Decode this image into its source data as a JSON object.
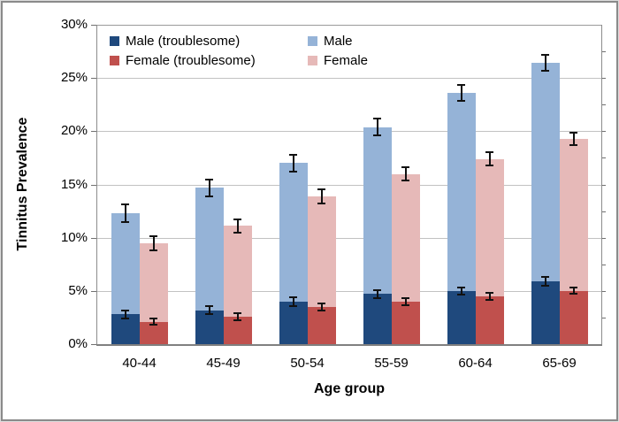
{
  "figure": {
    "background": "#FFFFFF",
    "border_color": "#8A8A8A"
  },
  "legend": {
    "position": "top-left-inside",
    "columns": [
      {
        "items": [
          {
            "label": "Male (troublesome)",
            "color": "#1F497D"
          },
          {
            "label": "Female (troublesome)",
            "color": "#C0504D"
          }
        ]
      },
      {
        "items": [
          {
            "label": "Male",
            "color": "#95B3D7"
          },
          {
            "label": "Female",
            "color": "#E6B9B8"
          }
        ]
      }
    ]
  },
  "chart_data": {
    "type": "bar",
    "title": "",
    "xlabel": "Age group",
    "ylabel": "Tinnitus Prevalence",
    "categories": [
      "40-44",
      "45-49",
      "50-54",
      "55-59",
      "60-64",
      "65-69"
    ],
    "series": [
      {
        "name": "Male",
        "color": "#95B3D7",
        "values": [
          12.3,
          14.7,
          17.0,
          20.4,
          23.6,
          26.4
        ],
        "errors": [
          0.8,
          0.8,
          0.8,
          0.8,
          0.75,
          0.75
        ]
      },
      {
        "name": "Female",
        "color": "#E6B9B8",
        "values": [
          9.5,
          11.1,
          13.9,
          16.0,
          17.4,
          19.3
        ],
        "errors": [
          0.65,
          0.65,
          0.65,
          0.65,
          0.6,
          0.6
        ]
      },
      {
        "name": "Male (troublesome)",
        "color": "#1F497D",
        "values": [
          2.8,
          3.2,
          4.0,
          4.7,
          5.0,
          5.9
        ],
        "errors": [
          0.4,
          0.4,
          0.4,
          0.4,
          0.35,
          0.4
        ]
      },
      {
        "name": "Female (troublesome)",
        "color": "#C0504D",
        "values": [
          2.1,
          2.6,
          3.5,
          4.0,
          4.5,
          5.0
        ],
        "errors": [
          0.3,
          0.35,
          0.35,
          0.35,
          0.3,
          0.3
        ]
      }
    ],
    "ylim": [
      0,
      30
    ],
    "ytick_step": 5,
    "ytick_labels": [
      "0%",
      "5%",
      "10%",
      "15%",
      "20%",
      "25%",
      "30%"
    ],
    "y_unit": "%",
    "grid": true,
    "error_bars": true,
    "legend_position": "top-left-inside",
    "bar_layout": "Male and Female total bars side by side per age group; troublesome portions overlaid at the base of each bar",
    "colors": {
      "male": "#95B3D7",
      "female": "#E6B9B8",
      "male_troublesome": "#1F497D",
      "female_troublesome": "#C0504D",
      "gridline": "#C2C2C2",
      "axis": "#8C8C8C",
      "error_bar": "#111111"
    }
  }
}
